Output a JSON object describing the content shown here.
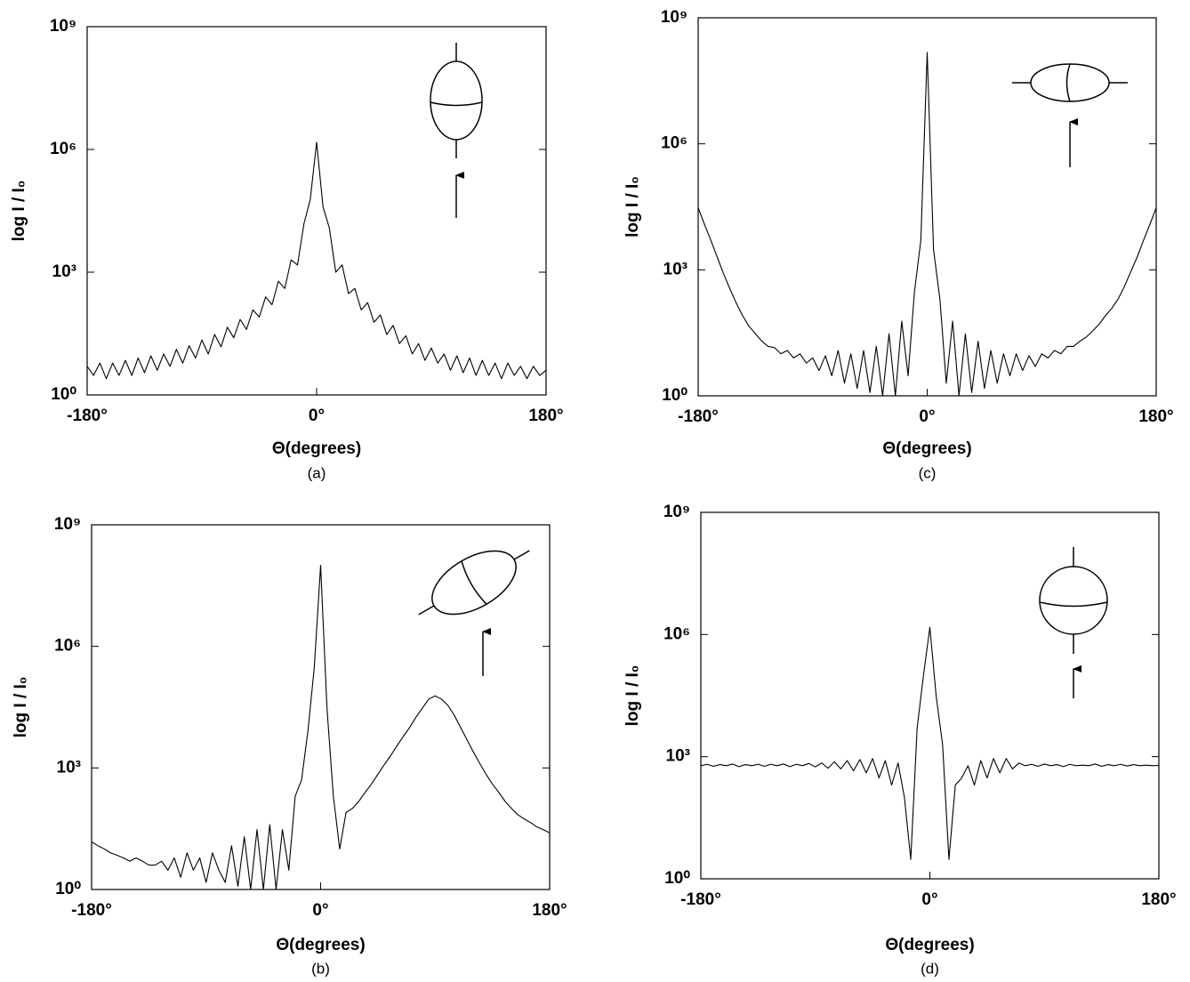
{
  "chart_data": [
    {
      "type": "line",
      "caption": "(a)",
      "xlabel": "Θ(degrees)",
      "ylabel": "log I / I₀",
      "log_y": true,
      "grid": false,
      "color": "#000000",
      "xlim": [
        -180,
        180
      ],
      "xticks": [
        {
          "value": -180,
          "label": "-180°"
        },
        {
          "value": 0,
          "label": "0°"
        },
        {
          "value": 180,
          "label": "180°"
        }
      ],
      "ylim": [
        1,
        1000000000
      ],
      "yticks": [
        {
          "value": 1,
          "label": "10⁰"
        },
        {
          "value": 1000,
          "label": "10³"
        },
        {
          "value": 1000000,
          "label": "10⁶"
        },
        {
          "value": 1000000000,
          "label": "10⁹"
        }
      ],
      "x": [
        -180,
        -175,
        -170,
        -165,
        -160,
        -155,
        -150,
        -145,
        -140,
        -135,
        -130,
        -125,
        -120,
        -115,
        -110,
        -105,
        -100,
        -95,
        -90,
        -85,
        -80,
        -75,
        -70,
        -65,
        -60,
        -55,
        -50,
        -45,
        -40,
        -35,
        -30,
        -25,
        -20,
        -15,
        -10,
        -5,
        0,
        5,
        10,
        15,
        20,
        25,
        30,
        35,
        40,
        45,
        50,
        55,
        60,
        65,
        70,
        75,
        80,
        85,
        90,
        95,
        100,
        105,
        110,
        115,
        120,
        125,
        130,
        135,
        140,
        145,
        150,
        155,
        160,
        165,
        170,
        175,
        180
      ],
      "values": [
        5,
        3,
        6,
        2.5,
        6,
        3,
        7,
        3,
        8,
        3.5,
        9,
        4,
        10,
        5,
        13,
        6,
        16,
        8,
        22,
        10,
        30,
        15,
        45,
        25,
        70,
        40,
        120,
        80,
        250,
        160,
        600,
        400,
        2000,
        1500,
        15000,
        60000,
        1500000,
        40000,
        12000,
        1000,
        1500,
        300,
        400,
        120,
        180,
        60,
        90,
        30,
        50,
        18,
        28,
        10,
        18,
        7,
        14,
        6,
        10,
        4,
        9,
        3.5,
        8,
        3,
        7,
        3,
        6,
        2.5,
        6,
        3,
        5,
        2.5,
        5,
        3,
        4
      ]
    },
    {
      "type": "line",
      "caption": "(b)",
      "xlabel": "Θ(degrees)",
      "ylabel": "log I / I₀",
      "log_y": true,
      "grid": false,
      "color": "#000000",
      "xlim": [
        -180,
        180
      ],
      "xticks": [
        {
          "value": -180,
          "label": "-180°"
        },
        {
          "value": 0,
          "label": "0°"
        },
        {
          "value": 180,
          "label": "180°"
        }
      ],
      "ylim": [
        1,
        1000000000
      ],
      "yticks": [
        {
          "value": 1,
          "label": "10⁰"
        },
        {
          "value": 1000,
          "label": "10³"
        },
        {
          "value": 1000000,
          "label": "10⁶"
        },
        {
          "value": 1000000000,
          "label": "10⁹"
        }
      ],
      "x": [
        -180,
        -175,
        -170,
        -165,
        -160,
        -155,
        -150,
        -145,
        -140,
        -135,
        -130,
        -125,
        -120,
        -115,
        -110,
        -105,
        -100,
        -95,
        -90,
        -85,
        -80,
        -75,
        -70,
        -65,
        -60,
        -55,
        -50,
        -45,
        -40,
        -35,
        -30,
        -25,
        -20,
        -15,
        -10,
        -5,
        0,
        5,
        10,
        15,
        20,
        25,
        30,
        35,
        40,
        45,
        50,
        55,
        60,
        65,
        70,
        75,
        80,
        85,
        90,
        95,
        100,
        105,
        110,
        115,
        120,
        125,
        130,
        135,
        140,
        145,
        150,
        155,
        160,
        165,
        170,
        175,
        180
      ],
      "values": [
        15,
        12,
        10,
        8,
        7,
        6,
        5,
        6,
        5,
        4,
        4,
        5,
        3,
        6,
        2,
        8,
        3,
        6,
        1.5,
        8,
        3,
        1.5,
        12,
        1.2,
        20,
        1,
        30,
        1,
        40,
        1,
        30,
        3,
        200,
        500,
        8000,
        300000,
        100000000,
        30000,
        200,
        10,
        80,
        100,
        150,
        250,
        400,
        700,
        1200,
        2000,
        3500,
        6000,
        10000,
        18000,
        30000,
        50000,
        60000,
        50000,
        35000,
        20000,
        10000,
        5000,
        2500,
        1300,
        700,
        400,
        250,
        150,
        100,
        70,
        55,
        45,
        35,
        30,
        25
      ]
    },
    {
      "type": "line",
      "caption": "(c)",
      "xlabel": "Θ(degrees)",
      "ylabel": "log I / I₀",
      "log_y": true,
      "grid": false,
      "color": "#000000",
      "xlim": [
        -180,
        180
      ],
      "xticks": [
        {
          "value": -180,
          "label": "-180°"
        },
        {
          "value": 0,
          "label": "0°"
        },
        {
          "value": 180,
          "label": "180°"
        }
      ],
      "ylim": [
        1,
        1000000000
      ],
      "yticks": [
        {
          "value": 1,
          "label": "10⁰"
        },
        {
          "value": 1000,
          "label": "10³"
        },
        {
          "value": 1000000,
          "label": "10⁶"
        },
        {
          "value": 1000000000,
          "label": "10⁹"
        }
      ],
      "x": [
        -180,
        -175,
        -170,
        -165,
        -160,
        -155,
        -150,
        -145,
        -140,
        -135,
        -130,
        -125,
        -120,
        -115,
        -110,
        -105,
        -100,
        -95,
        -90,
        -85,
        -80,
        -75,
        -70,
        -65,
        -60,
        -55,
        -50,
        -45,
        -40,
        -35,
        -30,
        -25,
        -20,
        -15,
        -10,
        -5,
        0,
        5,
        10,
        15,
        20,
        25,
        30,
        35,
        40,
        45,
        50,
        55,
        60,
        65,
        70,
        75,
        80,
        85,
        90,
        95,
        100,
        105,
        110,
        115,
        120,
        125,
        130,
        135,
        140,
        145,
        150,
        155,
        160,
        165,
        170,
        175,
        180
      ],
      "values": [
        30000,
        12000,
        5000,
        2000,
        800,
        350,
        160,
        80,
        45,
        30,
        20,
        15,
        14,
        10,
        12,
        8,
        10,
        6,
        8,
        4,
        9,
        3,
        12,
        2,
        10,
        1.5,
        12,
        1.2,
        15,
        1,
        30,
        1,
        60,
        3,
        300,
        5000,
        150000000,
        3000,
        200,
        2,
        60,
        1,
        30,
        1.2,
        20,
        1.5,
        12,
        2,
        10,
        3,
        10,
        4,
        9,
        5,
        10,
        8,
        12,
        10,
        15,
        15,
        20,
        25,
        35,
        50,
        80,
        120,
        200,
        400,
        900,
        2000,
        5000,
        12000,
        30000
      ]
    },
    {
      "type": "line",
      "caption": "(d)",
      "xlabel": "Θ(degrees)",
      "ylabel": "log I / I₀",
      "log_y": true,
      "grid": false,
      "color": "#000000",
      "xlim": [
        -180,
        180
      ],
      "xticks": [
        {
          "value": -180,
          "label": "-180°"
        },
        {
          "value": 0,
          "label": "0°"
        },
        {
          "value": 180,
          "label": "180°"
        }
      ],
      "ylim": [
        1,
        1000000000
      ],
      "yticks": [
        {
          "value": 1,
          "label": "10⁰"
        },
        {
          "value": 1000,
          "label": "10³"
        },
        {
          "value": 1000000,
          "label": "10⁶"
        },
        {
          "value": 1000000000,
          "label": "10⁹"
        }
      ],
      "x": [
        -180,
        -175,
        -170,
        -165,
        -160,
        -155,
        -150,
        -145,
        -140,
        -135,
        -130,
        -125,
        -120,
        -115,
        -110,
        -105,
        -100,
        -95,
        -90,
        -85,
        -80,
        -75,
        -70,
        -65,
        -60,
        -55,
        -50,
        -45,
        -40,
        -35,
        -30,
        -25,
        -20,
        -15,
        -10,
        -5,
        0,
        5,
        10,
        15,
        20,
        25,
        30,
        35,
        40,
        45,
        50,
        55,
        60,
        65,
        70,
        75,
        80,
        85,
        90,
        95,
        100,
        105,
        110,
        115,
        120,
        125,
        130,
        135,
        140,
        145,
        150,
        155,
        160,
        165,
        170,
        175,
        180
      ],
      "values": [
        600,
        650,
        580,
        640,
        600,
        660,
        570,
        640,
        600,
        650,
        580,
        650,
        600,
        660,
        570,
        650,
        600,
        680,
        560,
        700,
        520,
        750,
        500,
        800,
        450,
        850,
        400,
        900,
        300,
        800,
        200,
        700,
        100,
        3,
        5000,
        100000,
        1500000,
        30000,
        2000,
        3,
        200,
        300,
        600,
        200,
        800,
        300,
        900,
        400,
        900,
        500,
        700,
        600,
        650,
        580,
        660,
        600,
        640,
        570,
        650,
        600,
        620,
        600,
        660,
        580,
        640,
        600,
        650,
        590,
        640,
        600,
        620,
        600,
        610
      ]
    }
  ]
}
